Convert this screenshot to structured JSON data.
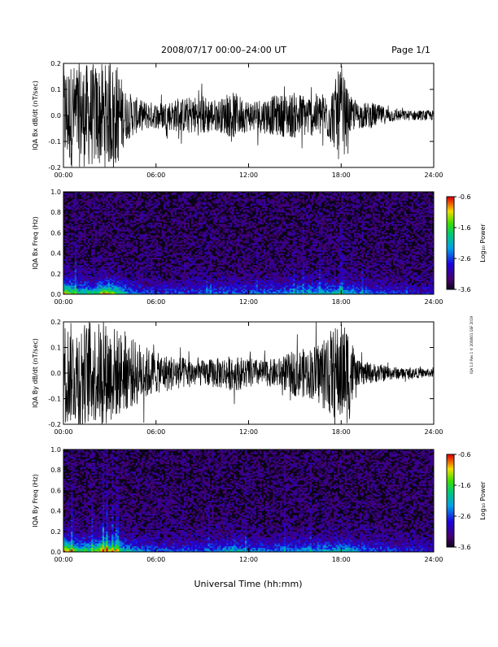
{
  "header": {
    "title": "2008/07/17  00:00–24:00 UT",
    "page": "Page 1/1"
  },
  "side_note": "IQA 1.0 Rev 1 © 2008/01 GSF 2019",
  "xlabel": "Universal Time (hh:mm)",
  "colors": {
    "trace": "#000000",
    "background": "#ffffff",
    "spectrogram_floor": "#0b0416"
  },
  "colorbar": {
    "label": "Log₁₀ Power",
    "ticks": [
      "-0.6",
      "-1.6",
      "-2.6",
      "-3.6"
    ]
  },
  "chart_data": [
    {
      "type": "line",
      "title": "",
      "ylabel": "IQA Bx dB/dt (nT/sec)",
      "xlabel": "",
      "xlim": [
        0,
        24
      ],
      "ylim": [
        -0.2,
        0.2
      ],
      "xticks": [
        "00:00",
        "06:00",
        "12:00",
        "18:00",
        "24:00"
      ],
      "yticks": [
        "0.2",
        "0.1",
        "0.0",
        "-0.1",
        "-0.2"
      ],
      "series": [
        {
          "x": [
            0,
            1,
            2,
            3,
            3.5,
            4,
            5,
            6,
            7,
            8,
            9,
            10,
            11,
            12,
            13,
            14,
            15,
            16,
            17,
            17.5,
            18,
            18.5,
            19,
            20,
            21,
            22,
            23,
            24
          ],
          "envelope": [
            0.2,
            0.2,
            0.2,
            0.2,
            0.2,
            0.1,
            0.06,
            0.05,
            0.06,
            0.07,
            0.08,
            0.06,
            0.09,
            0.06,
            0.07,
            0.08,
            0.09,
            0.08,
            0.09,
            0.12,
            0.2,
            0.08,
            0.05,
            0.05,
            0.03,
            0.02,
            0.02,
            0.02
          ]
        }
      ]
    },
    {
      "type": "heatmap",
      "ylabel": "IQA Bx Freq (Hz)",
      "xlim": [
        0,
        24
      ],
      "ylim": [
        0,
        1
      ],
      "xticks": [
        "00:00",
        "06:00",
        "12:00",
        "18:00",
        "24:00"
      ],
      "yticks": [
        "1.0",
        "0.8",
        "0.6",
        "0.4",
        "0.2",
        "0.0"
      ],
      "zlim": [
        -3.6,
        -0.6
      ],
      "activity_x": [
        0,
        1,
        2,
        2.5,
        3,
        4,
        5,
        6,
        8,
        10,
        12,
        14,
        15,
        16,
        17,
        18,
        18.5,
        19,
        20,
        21,
        22,
        23,
        24
      ],
      "activity": [
        0.9,
        0.55,
        0.55,
        0.85,
        0.8,
        0.45,
        0.3,
        0.25,
        0.28,
        0.3,
        0.33,
        0.35,
        0.42,
        0.45,
        0.45,
        0.48,
        0.5,
        0.38,
        0.3,
        0.28,
        0.22,
        0.2,
        0.18
      ]
    },
    {
      "type": "line",
      "ylabel": "IQA By dB/dt (nT/sec)",
      "xlim": [
        0,
        24
      ],
      "ylim": [
        -0.2,
        0.2
      ],
      "xticks": [
        "00:00",
        "06:00",
        "12:00",
        "18:00",
        "24:00"
      ],
      "yticks": [
        "0.2",
        "0.1",
        "0.0",
        "-0.1",
        "-0.2"
      ],
      "series": [
        {
          "x": [
            0,
            1,
            2,
            3,
            4,
            5,
            6,
            7,
            8,
            9,
            10,
            11,
            12,
            13,
            14,
            15,
            16,
            17,
            17.5,
            18,
            18.5,
            19,
            20,
            21,
            22,
            23,
            24
          ],
          "envelope": [
            0.2,
            0.2,
            0.2,
            0.2,
            0.15,
            0.12,
            0.08,
            0.07,
            0.06,
            0.05,
            0.06,
            0.07,
            0.06,
            0.05,
            0.06,
            0.09,
            0.1,
            0.15,
            0.18,
            0.2,
            0.2,
            0.05,
            0.04,
            0.03,
            0.02,
            0.02,
            0.015
          ]
        }
      ]
    },
    {
      "type": "heatmap",
      "ylabel": "IQA By Freq (Hz)",
      "xlim": [
        0,
        24
      ],
      "ylim": [
        0,
        1
      ],
      "xticks": [
        "00:00",
        "06:00",
        "12:00",
        "18:00",
        "24:00"
      ],
      "yticks": [
        "1.0",
        "0.8",
        "0.6",
        "0.4",
        "0.2",
        "0.0"
      ],
      "zlim": [
        -3.6,
        -0.6
      ],
      "activity_x": [
        0,
        1,
        2,
        2.5,
        3,
        4,
        5,
        6,
        8,
        10,
        11,
        12,
        14,
        16,
        18,
        18.5,
        19,
        20,
        21,
        22,
        23,
        24
      ],
      "activity": [
        0.95,
        0.6,
        0.65,
        0.9,
        0.85,
        0.5,
        0.35,
        0.3,
        0.3,
        0.35,
        0.5,
        0.35,
        0.35,
        0.4,
        0.45,
        0.48,
        0.38,
        0.3,
        0.28,
        0.22,
        0.2,
        0.18
      ]
    }
  ]
}
